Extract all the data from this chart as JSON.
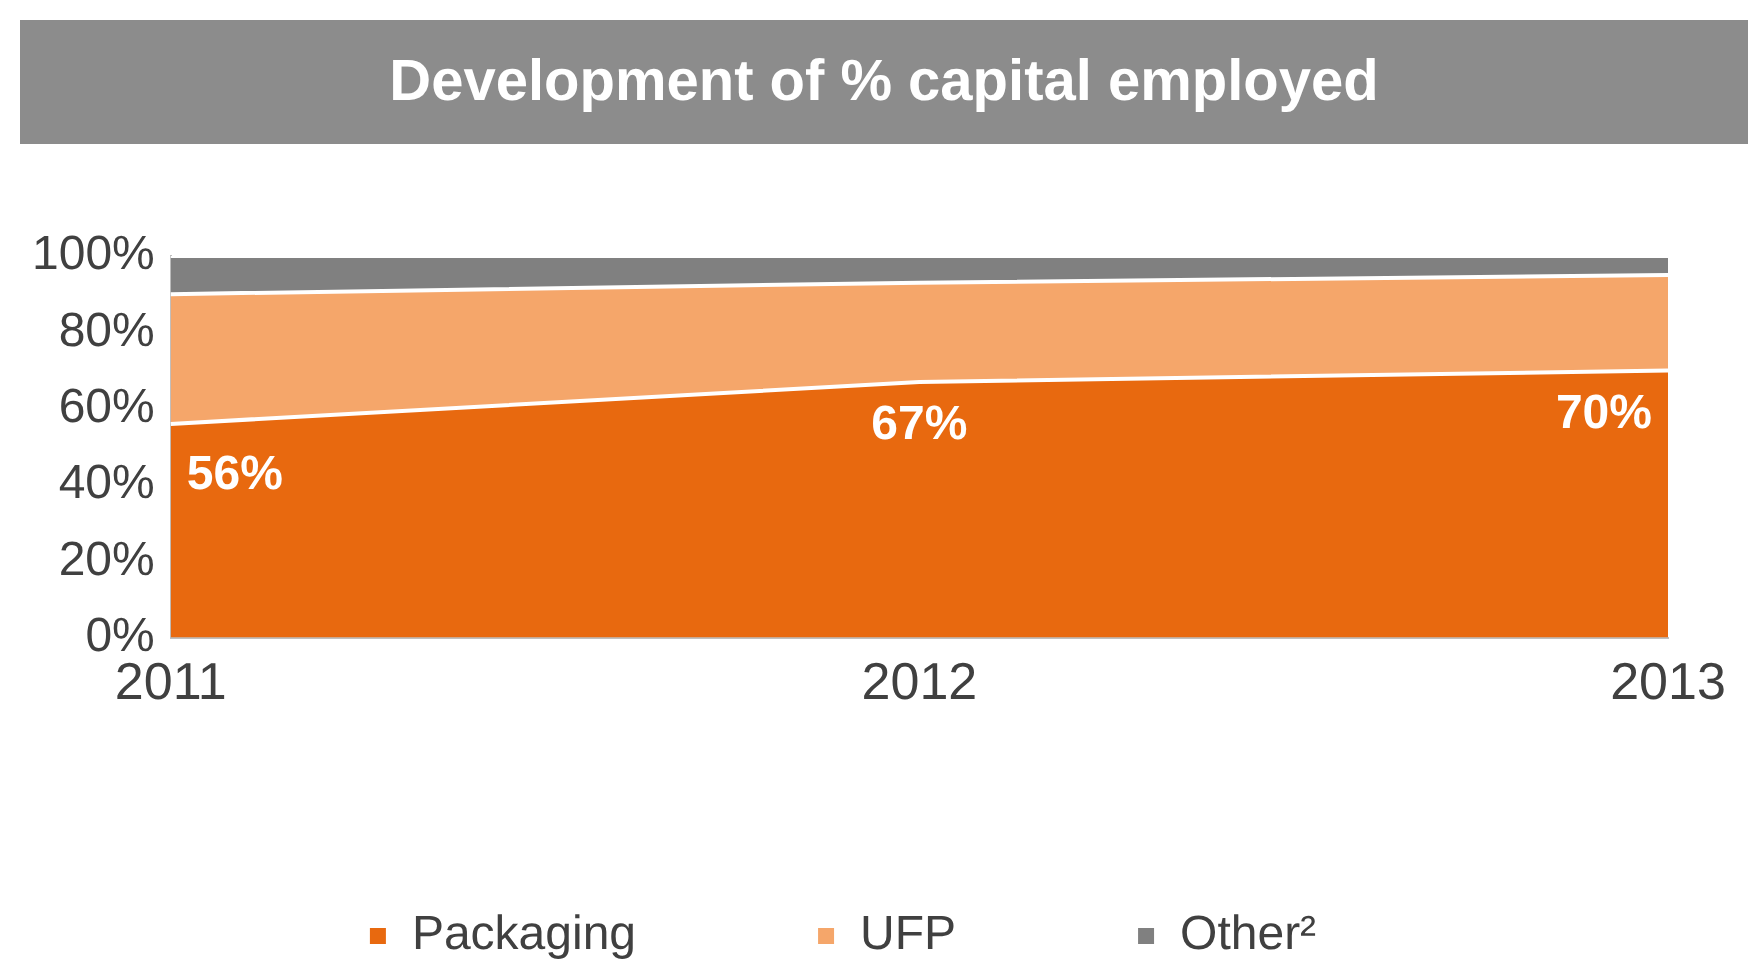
{
  "chart_data": {
    "type": "area",
    "title": "Development of % capital employed",
    "stacked": true,
    "categories": [
      "2011",
      "2012",
      "2013"
    ],
    "series": [
      {
        "name": "Packaging",
        "color": "#e8690f",
        "values": [
          56,
          67,
          70
        ],
        "value_labels": [
          "56%",
          "67%",
          "70%"
        ]
      },
      {
        "name": "UFP",
        "color": "#f5a66a",
        "values": [
          34,
          26,
          25
        ]
      },
      {
        "name": "Other²",
        "color": "#808080",
        "values": [
          10,
          7,
          5
        ]
      }
    ],
    "ylim": [
      0,
      100
    ],
    "yticks": [
      {
        "value": 0,
        "label": "0%"
      },
      {
        "value": 20,
        "label": "20%"
      },
      {
        "value": 40,
        "label": "40%"
      },
      {
        "value": 60,
        "label": "60%"
      },
      {
        "value": 80,
        "label": "80%"
      },
      {
        "value": 100,
        "label": "100%"
      }
    ],
    "grid": false,
    "legend": "bottom"
  }
}
